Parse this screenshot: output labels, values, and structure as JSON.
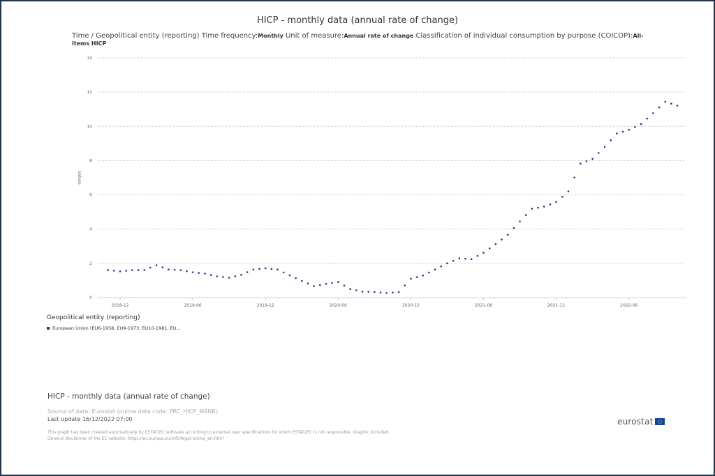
{
  "title": "HICP - monthly data (annual rate of change)",
  "subtitle": {
    "prefix": "Time / Geopolitical entity (reporting)  Time frequency:",
    "frequency": "Monthly",
    "unit_label": "  Unit of measure:",
    "unit": "Annual rate of change",
    "coicop_label": "  Classification of individual consumption by purpose (COICOP):",
    "coicop": "All-items HICP"
  },
  "legend": {
    "title": "Geopolitical entity (reporting)",
    "item": "European Union (EU6-1958, EU9-1973, EU10-1981, EU..."
  },
  "footer": {
    "title": "HICP - monthly data (annual rate of change)",
    "source": "Source of data: Eurostat (online data code: PRC_HICP_MANR)",
    "last_update": "Last update 16/12/2022 07:00",
    "disclaimer_1": "This graph has been created automatically by ESTAT/EC software according to external user specifications for which ESTAT/EC is not responsible. Graphic included.",
    "disclaimer_2": "General disclaimer of the EC website: https://ec.europa.eu/info/legal-notice_en.html"
  },
  "logo": {
    "text": "eurostat",
    "icon": "eu-flag-icon"
  },
  "colors": {
    "series": "#1f3a7a",
    "grid": "#cccccc",
    "frame": "#24344f"
  },
  "chart_data": {
    "type": "line",
    "style": "dotted",
    "ylabel": "Values",
    "ylim": [
      0,
      14
    ],
    "yticks": [
      0,
      2,
      4,
      6,
      8,
      10,
      12,
      14
    ],
    "xticks": [
      "2018-12",
      "2019-06",
      "2019-12",
      "2020-06",
      "2020-12",
      "2021-06",
      "2021-12",
      "2022-06"
    ],
    "grid": true,
    "legend_position": "bottom-left",
    "series": [
      {
        "name": "European Union (EU6-1958, EU9-1973, EU10-1981, EU...",
        "x": [
          "2018-11",
          "2018-12",
          "2019-01",
          "2019-02",
          "2019-03",
          "2019-04",
          "2019-05",
          "2019-06",
          "2019-07",
          "2019-08",
          "2019-09",
          "2019-10",
          "2019-11",
          "2019-12",
          "2020-01",
          "2020-02",
          "2020-03",
          "2020-04",
          "2020-05",
          "2020-06",
          "2020-07",
          "2020-08",
          "2020-09",
          "2020-10",
          "2020-11",
          "2020-12",
          "2021-01",
          "2021-02",
          "2021-03",
          "2021-04",
          "2021-05",
          "2021-06",
          "2021-07",
          "2021-08",
          "2021-09",
          "2021-10",
          "2021-11",
          "2021-12",
          "2022-01",
          "2022-02",
          "2022-03",
          "2022-04",
          "2022-05",
          "2022-06",
          "2022-07",
          "2022-08",
          "2022-09",
          "2022-10"
        ],
        "values": [
          1.61,
          1.53,
          1.6,
          1.61,
          1.89,
          1.64,
          1.6,
          1.48,
          1.4,
          1.24,
          1.16,
          1.33,
          1.64,
          1.71,
          1.64,
          1.3,
          0.97,
          0.67,
          0.8,
          0.91,
          0.5,
          0.35,
          0.33,
          0.27,
          0.32,
          1.1,
          1.29,
          1.64,
          2.0,
          2.29,
          2.25,
          2.62,
          3.12,
          3.67,
          4.45,
          5.19,
          5.31,
          5.58,
          6.2,
          7.82,
          8.1,
          8.8,
          9.58,
          9.8,
          10.13,
          10.77,
          11.44,
          11.21
        ]
      }
    ]
  }
}
